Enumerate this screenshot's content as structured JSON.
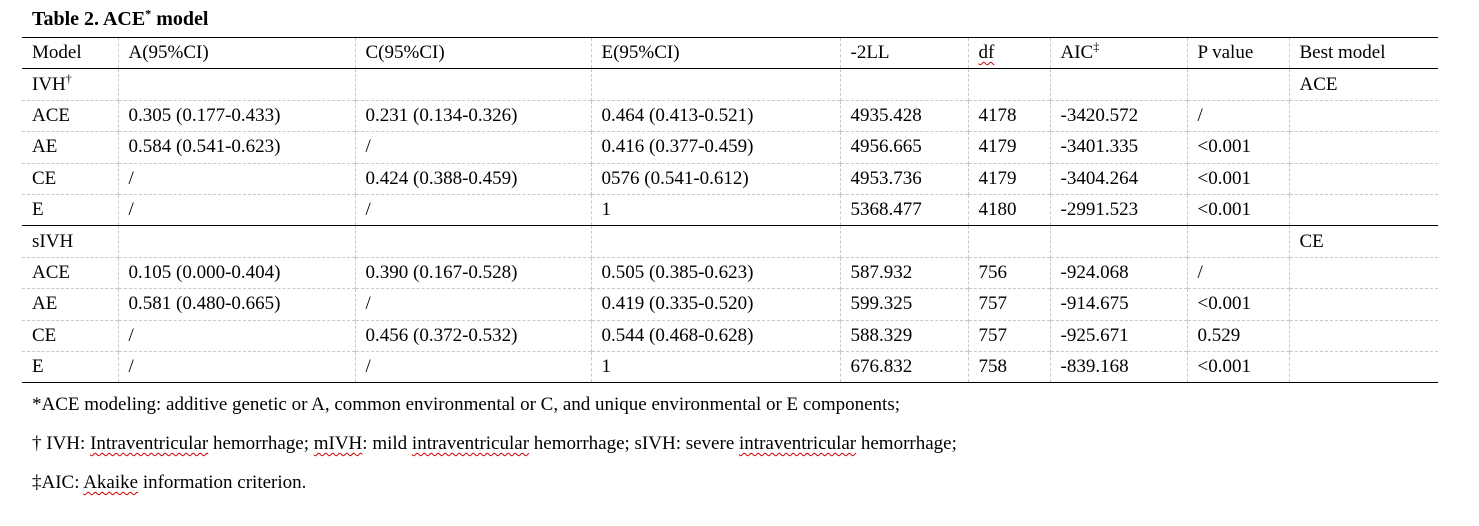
{
  "title": {
    "text": "Table 2. ACE",
    "sup": "*",
    "rest": " model"
  },
  "table": {
    "header": [
      "Model",
      "A(95%CI)",
      "C(95%CI)",
      "E(95%CI)",
      "-2LL",
      {
        "text": "df",
        "flagged": true
      },
      {
        "text": "AIC",
        "sup": "‡"
      },
      "P value",
      "Best model"
    ],
    "groups": [
      {
        "rows": [
          [
            {
              "text": "IVH",
              "sup": "†"
            },
            "",
            "",
            "",
            "",
            "",
            "",
            "",
            "ACE"
          ],
          [
            "ACE",
            "0.305 (0.177-0.433)",
            "0.231 (0.134-0.326)",
            "0.464 (0.413-0.521)",
            "4935.428",
            "4178",
            "-3420.572",
            "/",
            ""
          ],
          [
            "AE",
            "0.584 (0.541-0.623)",
            "/",
            "0.416 (0.377-0.459)",
            "4956.665",
            "4179",
            "-3401.335",
            "<0.001",
            ""
          ],
          [
            "CE",
            "/",
            "0.424 (0.388-0.459)",
            "0576 (0.541-0.612)",
            "4953.736",
            "4179",
            "-3404.264",
            "<0.001",
            ""
          ],
          [
            "E",
            "/",
            "/",
            "1",
            "5368.477",
            "4180",
            "-2991.523",
            "<0.001",
            ""
          ]
        ]
      },
      {
        "rows": [
          [
            "sIVH",
            "",
            "",
            "",
            "",
            "",
            "",
            "",
            "CE"
          ],
          [
            "ACE",
            "0.105 (0.000-0.404)",
            "0.390 (0.167-0.528)",
            "0.505 (0.385-0.623)",
            "587.932",
            "756",
            "-924.068",
            "/",
            ""
          ],
          [
            "AE",
            "0.581 (0.480-0.665)",
            "/",
            "0.419 (0.335-0.520)",
            "599.325",
            "757",
            "-914.675",
            "<0.001",
            ""
          ],
          [
            "CE",
            "/",
            "0.456 (0.372-0.532)",
            "0.544 (0.468-0.628)",
            "588.329",
            "757",
            "-925.671",
            "0.529",
            ""
          ],
          [
            "E",
            "/",
            "/",
            "1",
            "676.832",
            "758",
            "-839.168",
            "<0.001",
            ""
          ]
        ]
      }
    ]
  },
  "footnotes": [
    [
      {
        "text": "*ACE modeling: additive genetic or A, common environmental or C, and unique environmental or E components;"
      }
    ],
    [
      {
        "text": "† IVH: "
      },
      {
        "text": "Intraventricular",
        "flagged": true
      },
      {
        "text": " hemorrhage; "
      },
      {
        "text": "mIVH",
        "flagged": true
      },
      {
        "text": ": mild "
      },
      {
        "text": "intraventricular",
        "flagged": true
      },
      {
        "text": " hemorrhage; sIVH: severe "
      },
      {
        "text": "intraventricular",
        "flagged": true
      },
      {
        "text": " hemorrhage;"
      }
    ],
    [
      {
        "text": "‡AIC: "
      },
      {
        "text": "Akaike",
        "flagged": true
      },
      {
        "text": " information criterion."
      }
    ]
  ]
}
